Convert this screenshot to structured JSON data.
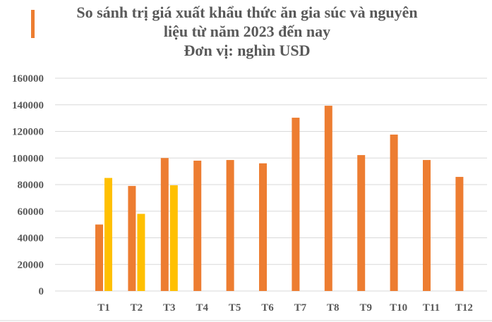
{
  "chart_data": {
    "type": "bar",
    "title_lines": [
      "So sánh trị giá xuất khẩu thức ăn gia súc và nguyên",
      "liệu từ năm 2023 đến nay",
      "Đơn vị: nghìn USD"
    ],
    "categories": [
      "T1",
      "T2",
      "T3",
      "T4",
      "T5",
      "T6",
      "T7",
      "T8",
      "T9",
      "T10",
      "T11",
      "T12"
    ],
    "series": [
      {
        "color": "#ED7D31",
        "values": [
          50000,
          79000,
          100000,
          98000,
          98500,
          96000,
          130300,
          139300,
          102200,
          117600,
          98500,
          85800
        ]
      },
      {
        "color": "#FFC000",
        "values": [
          85000,
          58000,
          79500,
          null,
          null,
          null,
          null,
          null,
          null,
          null,
          null,
          null
        ]
      }
    ],
    "yticks": [
      "0",
      "20000",
      "40000",
      "60000",
      "80000",
      "100000",
      "120000",
      "140000",
      "160000"
    ],
    "ylim": [
      0,
      160000
    ],
    "grid": true,
    "legend": "none",
    "accent_color": "#ED7D31"
  }
}
